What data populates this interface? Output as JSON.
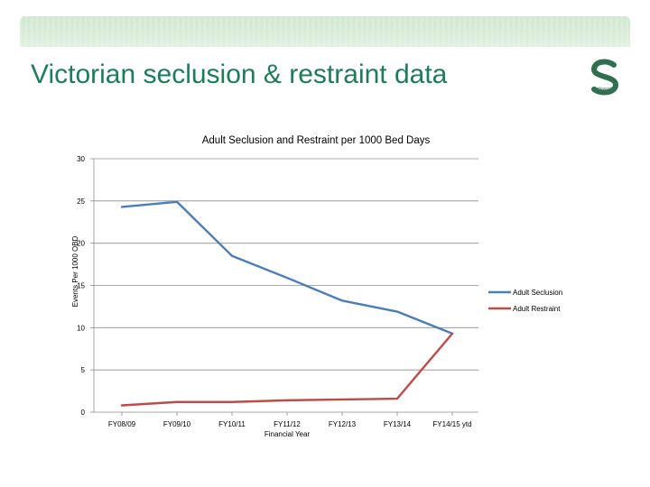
{
  "slide": {
    "title": "Victorian seclusion & restraint data",
    "logo_name": "Safewards",
    "logo_icon": "safewards-s-logo-icon"
  },
  "chart_data": {
    "type": "line",
    "title": "Adult Seclusion and Restraint per 1000 Bed Days",
    "xlabel": "Financial Year",
    "ylabel": "Events Per 1000 OBD",
    "categories": [
      "FY08/09",
      "FY09/10",
      "FY10/11",
      "FY11/12",
      "FY12/13",
      "FY13/14",
      "FY14/15 ytd"
    ],
    "ylim": [
      0,
      30
    ],
    "yticks": [
      0,
      5,
      10,
      15,
      20,
      25,
      30
    ],
    "grid": true,
    "legend": "right",
    "series": [
      {
        "name": "Adult Seclusion",
        "color": "#4a7ebb",
        "values": [
          24.3,
          24.9,
          18.5,
          15.9,
          13.2,
          11.9,
          9.3
        ]
      },
      {
        "name": "Adult Restraint",
        "color": "#be4b48",
        "values": [
          0.8,
          1.2,
          1.2,
          1.4,
          1.5,
          1.6,
          9.3
        ]
      }
    ]
  }
}
